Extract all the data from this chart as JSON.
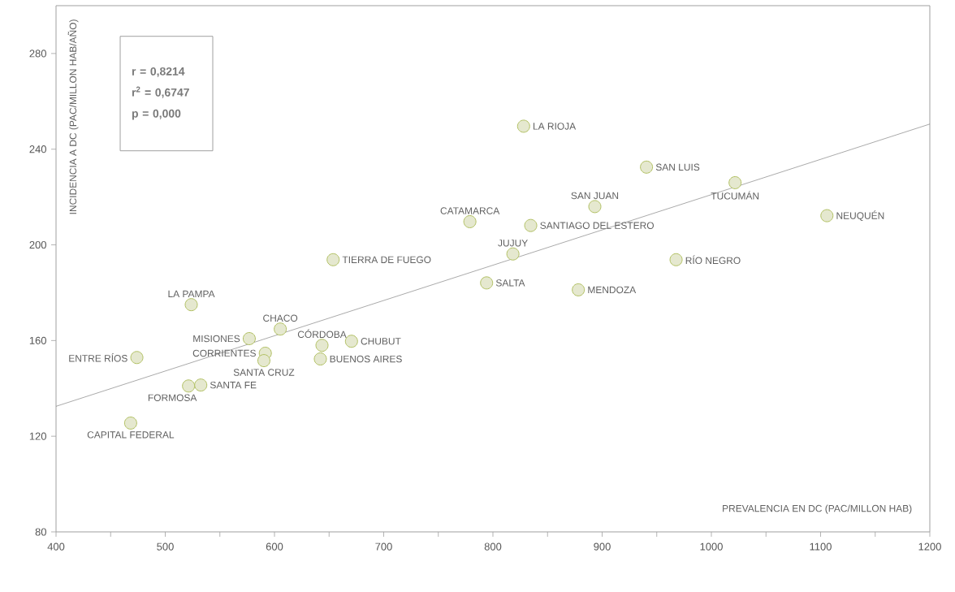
{
  "chart_data": {
    "type": "scatter",
    "xlabel": "PREVALENCIA EN DC (PAC/MILLON HAB)",
    "ylabel": "INCIDENCIA A DC (PAC/MILLON HAB/AÑO)",
    "xlim": [
      400,
      1200
    ],
    "ylim": [
      80,
      300
    ],
    "xticks": [
      400,
      {
        "value": 450,
        "label": null
      },
      500,
      {
        "value": 550,
        "label": null
      },
      600,
      {
        "value": 650,
        "label": null
      },
      700,
      {
        "value": 750,
        "label": null
      },
      800,
      {
        "value": 850,
        "label": null
      },
      900,
      {
        "value": 950,
        "label": null
      },
      1000,
      {
        "value": 1050,
        "label": null
      },
      1100,
      {
        "value": 1150,
        "label": null
      },
      1200
    ],
    "yticks": [
      80,
      120,
      160,
      200,
      240,
      280
    ],
    "marker": "circle",
    "series": [
      {
        "color": "#e5e8cf",
        "x": [
          468.3,
          474.0,
          521.3,
          532.5,
          523.8,
          576.9,
          591.6,
          590.3,
          605.3,
          643.5,
          642.0,
          670.5,
          653.7,
          778.9,
          794.2,
          818.3,
          828.1,
          834.6,
          878.2,
          893.3,
          940.6,
          967.7,
          1021.7,
          1105.8
        ],
        "values": [
          125.5,
          152.9,
          141.0,
          141.4,
          175.0,
          160.8,
          154.7,
          151.6,
          164.8,
          158.0,
          152.3,
          159.7,
          193.8,
          209.7,
          184.1,
          196.2,
          249.6,
          208.1,
          181.2,
          216.0,
          232.5,
          193.8,
          226.0,
          212.2
        ]
      },
      {
        "type": "line",
        "marker": "none",
        "color": "#707070",
        "x": [
          400,
          1200
        ],
        "values": [
          132.5,
          250.5
        ]
      }
    ],
    "annotations": [
      "r = 0,8214",
      "r$^{2}$ = 0,6747",
      "p  = 0,000",
      {
        "text": "CAPITAL FEDERAL",
        "x": 468.3,
        "y": 125.5
      },
      {
        "text": "ENTRE RÍOS",
        "x": 474.0,
        "y": 152.9
      },
      {
        "text": "FORMOSA",
        "x": 521.3,
        "y": 141.0
      },
      {
        "text": "SANTA FE",
        "x": 532.5,
        "y": 141.4
      },
      {
        "text": "LA PAMPA",
        "x": 523.8,
        "y": 175.0
      },
      {
        "text": "MISIONES",
        "x": 576.9,
        "y": 160.8
      },
      {
        "text": "CORRIENTES",
        "x": 591.6,
        "y": 154.7
      },
      {
        "text": "SANTA CRUZ",
        "x": 590.3,
        "y": 151.6
      },
      {
        "text": "CHACO",
        "x": 605.3,
        "y": 164.8
      },
      {
        "text": "CÓRDOBA",
        "x": 643.5,
        "y": 158.0
      },
      {
        "text": "BUENOS AIRES",
        "x": 642.0,
        "y": 152.3
      },
      {
        "text": "CHUBUT",
        "x": 670.5,
        "y": 159.7
      },
      {
        "text": "TIERRA DE FUEGO",
        "x": 653.7,
        "y": 193.8
      },
      {
        "text": "CATAMARCA",
        "x": 778.9,
        "y": 209.7
      },
      {
        "text": "SALTA",
        "x": 794.2,
        "y": 184.1
      },
      {
        "text": "JUJUY",
        "x": 818.3,
        "y": 196.2
      },
      {
        "text": "LA RIOJA",
        "x": 828.1,
        "y": 249.6
      },
      {
        "text": "SANTIAGO DEL ESTERO",
        "x": 834.6,
        "y": 208.1
      },
      {
        "text": "MENDOZA",
        "x": 878.2,
        "y": 181.2
      },
      {
        "text": "SAN JUAN",
        "x": 893.3,
        "y": 216.0
      },
      {
        "text": "SAN LUIS",
        "x": 940.6,
        "y": 232.5
      },
      {
        "text": "RÍO NEGRO",
        "x": 967.7,
        "y": 193.8
      },
      {
        "text": "TUCUMÁN",
        "x": 1021.7,
        "y": 226.0
      },
      {
        "text": "NEUQUÉN",
        "x": 1105.8,
        "y": 212.2
      }
    ]
  }
}
